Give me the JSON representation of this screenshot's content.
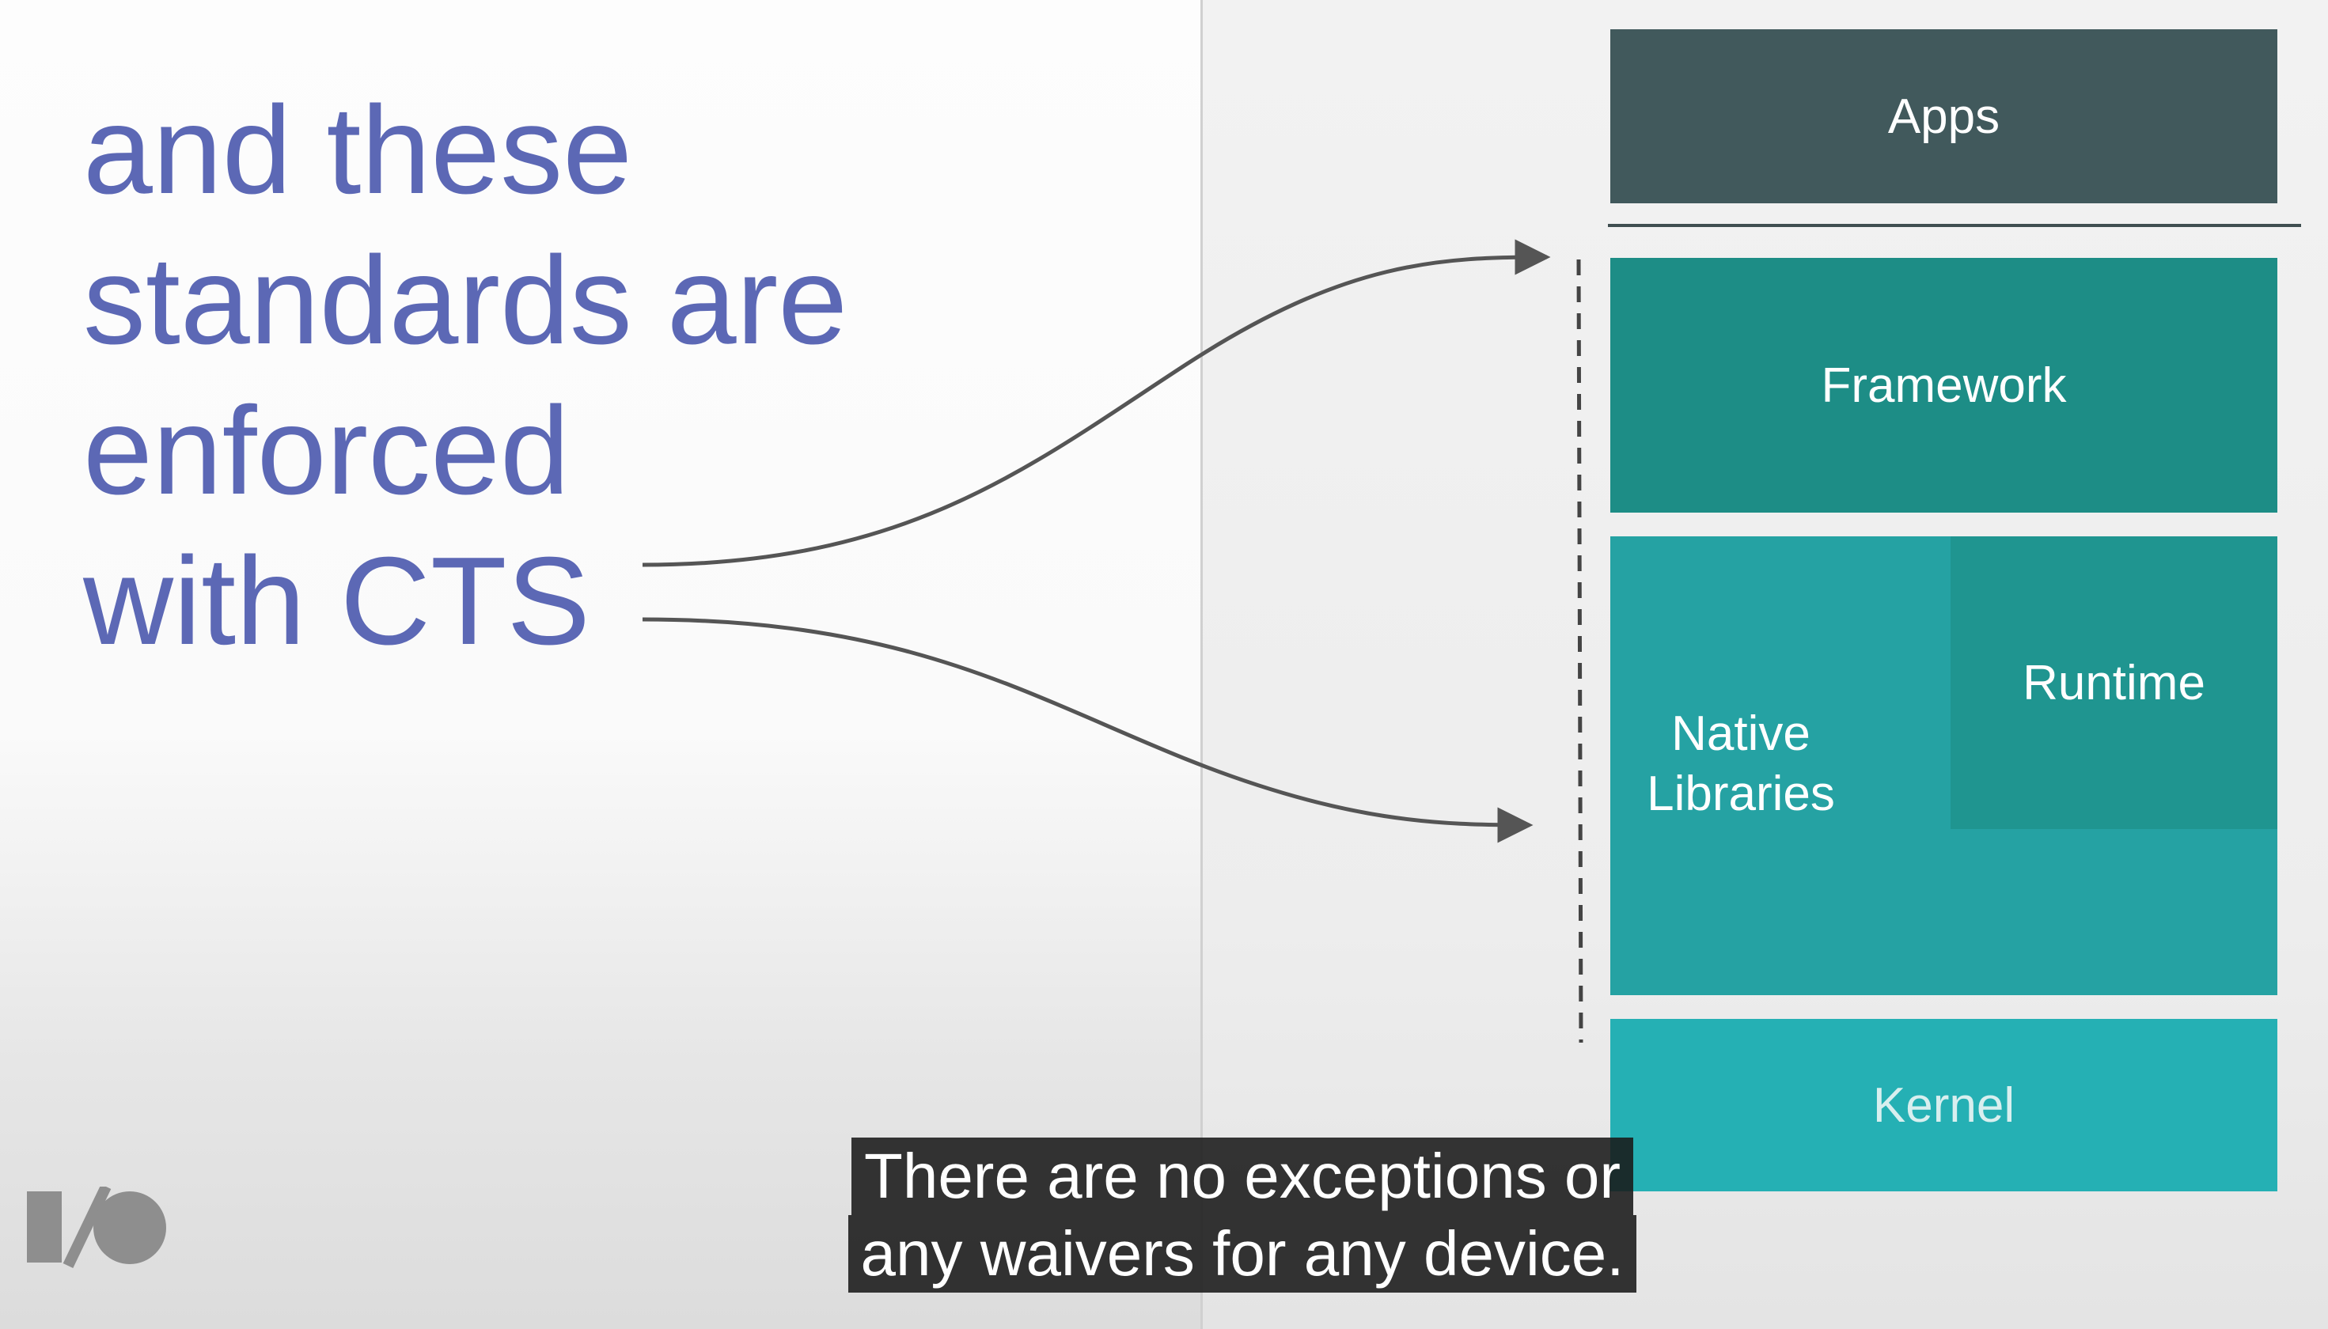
{
  "slide": {
    "heading_lines": [
      "and these",
      "standards are",
      "enforced",
      "with CTS"
    ]
  },
  "stack": {
    "apps": "Apps",
    "framework": "Framework",
    "native_libraries_line1": "Native",
    "native_libraries_line2": "Libraries",
    "runtime": "Runtime",
    "kernel": "Kernel"
  },
  "caption": {
    "line1": "There are no exceptions or",
    "line2": "any waivers for any device."
  },
  "logo": {
    "icon": "google-io-logo-icon"
  },
  "colors": {
    "heading": "#5c68b5",
    "apps": "#41595c",
    "framework": "#1d8d86",
    "native": "#25a2a3",
    "runtime": "#1f9590",
    "kernel": "#25b0b4"
  }
}
